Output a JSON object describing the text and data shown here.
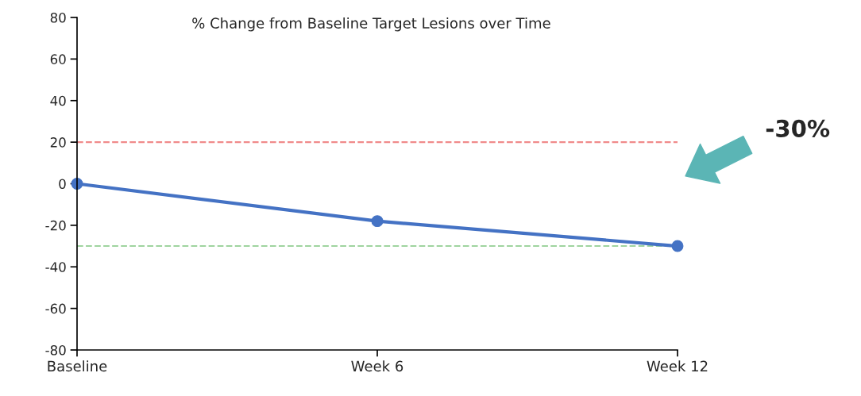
{
  "chart_data": {
    "type": "line",
    "title": "% Change from Baseline Target Lesions over Time",
    "categories": [
      "Baseline",
      "Week 6",
      "Week 12"
    ],
    "series": [
      {
        "color": "#4472c4",
        "values": [
          0,
          -18,
          -30
        ]
      }
    ],
    "marker": "circle",
    "line_style": "solid",
    "ylim": [
      -80,
      80
    ],
    "yticks": [
      -80,
      -60,
      -40,
      -20,
      0,
      20,
      40,
      60,
      80
    ],
    "grid": false,
    "ref_lines": [
      {
        "axis": "y",
        "value": 20,
        "color": "#f08a8a",
        "line_style": "dashed"
      },
      {
        "axis": "y",
        "value": -30,
        "color": "#9fd49f",
        "line_style": "dashed"
      }
    ],
    "annotations": [
      "-30%"
    ]
  }
}
